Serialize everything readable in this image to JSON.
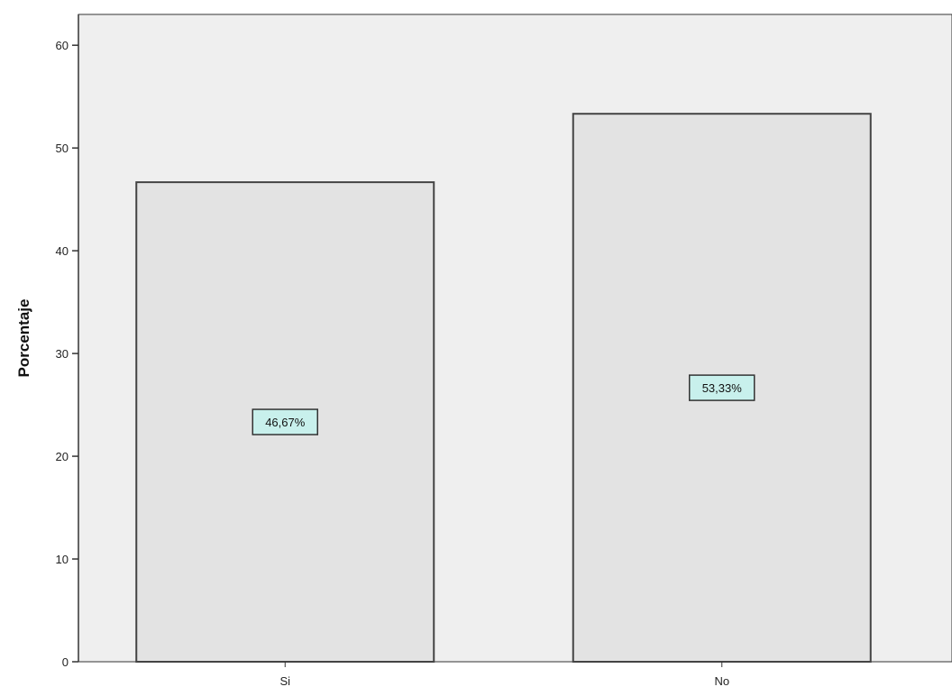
{
  "chart_data": {
    "type": "bar",
    "categories": [
      "Si",
      "No"
    ],
    "values": [
      46.67,
      53.33
    ],
    "data_labels": [
      "46,67%",
      "53,33%"
    ],
    "title": "",
    "xlabel": "",
    "ylabel": "Porcentaje",
    "ylim": [
      0,
      63
    ],
    "yticks": [
      0,
      10,
      20,
      30,
      40,
      50,
      60
    ],
    "grid": false,
    "legend": "none"
  },
  "colors": {
    "plot_background": "#efefef",
    "bar_fill": "#e3e3e3",
    "bar_stroke": "#444444",
    "label_fill": "#c8f0ec",
    "label_stroke": "#333333",
    "axis": "#333333"
  }
}
